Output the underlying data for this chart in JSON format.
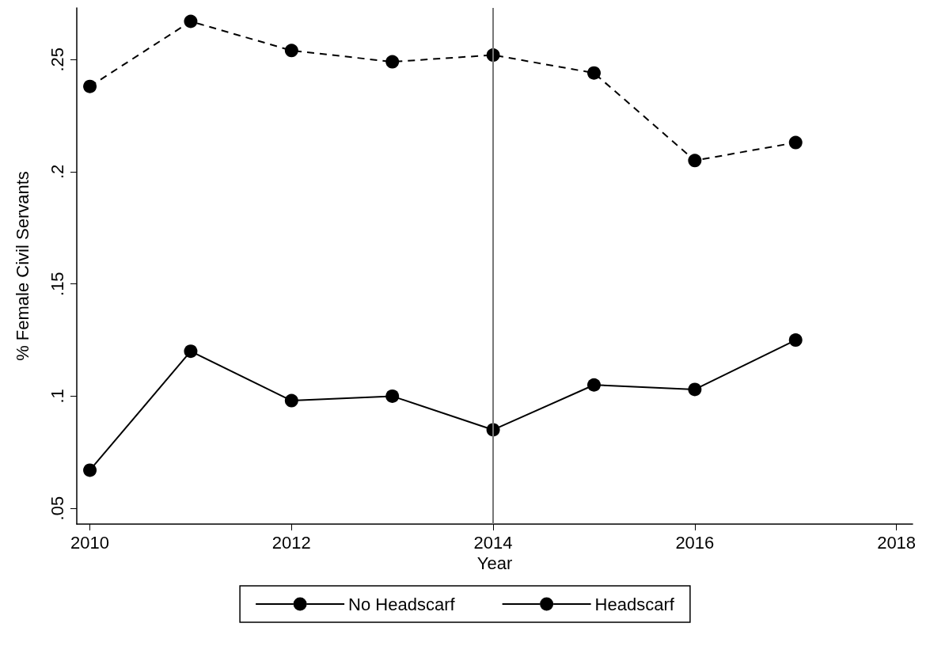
{
  "chart_data": {
    "type": "line",
    "xlabel": "Year",
    "ylabel": "% Female Civil Servants",
    "x": [
      2010,
      2011,
      2012,
      2013,
      2014,
      2015,
      2016,
      2017
    ],
    "series": [
      {
        "name": "No Headscarf",
        "color": "#000000",
        "line_style": "dashed",
        "values": [
          0.238,
          0.267,
          0.254,
          0.249,
          0.252,
          0.244,
          0.205,
          0.213
        ]
      },
      {
        "name": "Headscarf",
        "color": "#000000",
        "line_style": "solid",
        "values": [
          0.067,
          0.12,
          0.098,
          0.1,
          0.085,
          0.105,
          0.103,
          0.125
        ]
      }
    ],
    "xlim": [
      2009.87,
      2018.16
    ],
    "xticks": [
      2010,
      2012,
      2014,
      2016,
      2018
    ],
    "ylim": [
      0.043,
      0.273
    ],
    "yticks": [
      {
        "value": 0.05,
        "label": ".05"
      },
      {
        "value": 0.1,
        "label": ".1"
      },
      {
        "value": 0.15,
        "label": ".15"
      },
      {
        "value": 0.2,
        "label": ".2"
      },
      {
        "value": 0.25,
        "label": ".25"
      }
    ],
    "ref_lines": [
      {
        "axis": "x",
        "value": 2014,
        "color": "#777777"
      }
    ],
    "marker": "circle",
    "grid": false,
    "legend": "bottom"
  }
}
